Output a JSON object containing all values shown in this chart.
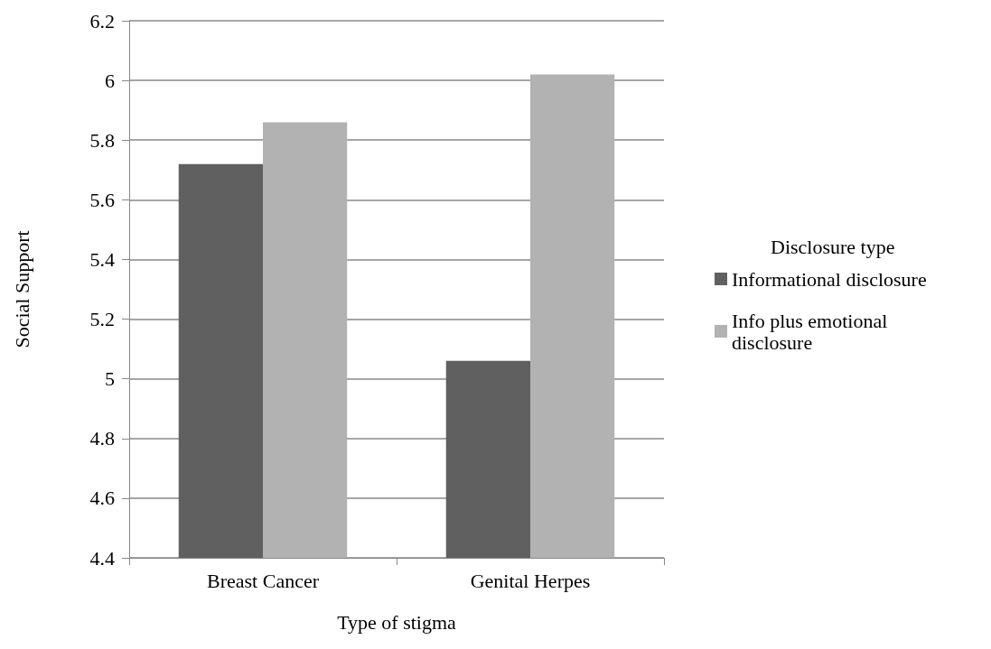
{
  "chart_data": {
    "type": "bar",
    "xlabel": "Type of stigma",
    "ylabel": "Social Support",
    "legend_title": "Disclosure type",
    "categories": [
      "Breast Cancer",
      "Genital Herpes"
    ],
    "series": [
      {
        "name": "Informational disclosure",
        "color": "#606060",
        "values": [
          5.72,
          5.06
        ]
      },
      {
        "name": "Info plus emotional disclosure",
        "color": "#b2b2b2",
        "values": [
          5.86,
          6.02
        ]
      }
    ],
    "ylim": [
      4.4,
      6.2
    ],
    "yticks": [
      4.4,
      4.6,
      4.8,
      5,
      5.2,
      5.4,
      5.6,
      5.8,
      6,
      6.2
    ],
    "grid": "y",
    "legend": "right"
  }
}
